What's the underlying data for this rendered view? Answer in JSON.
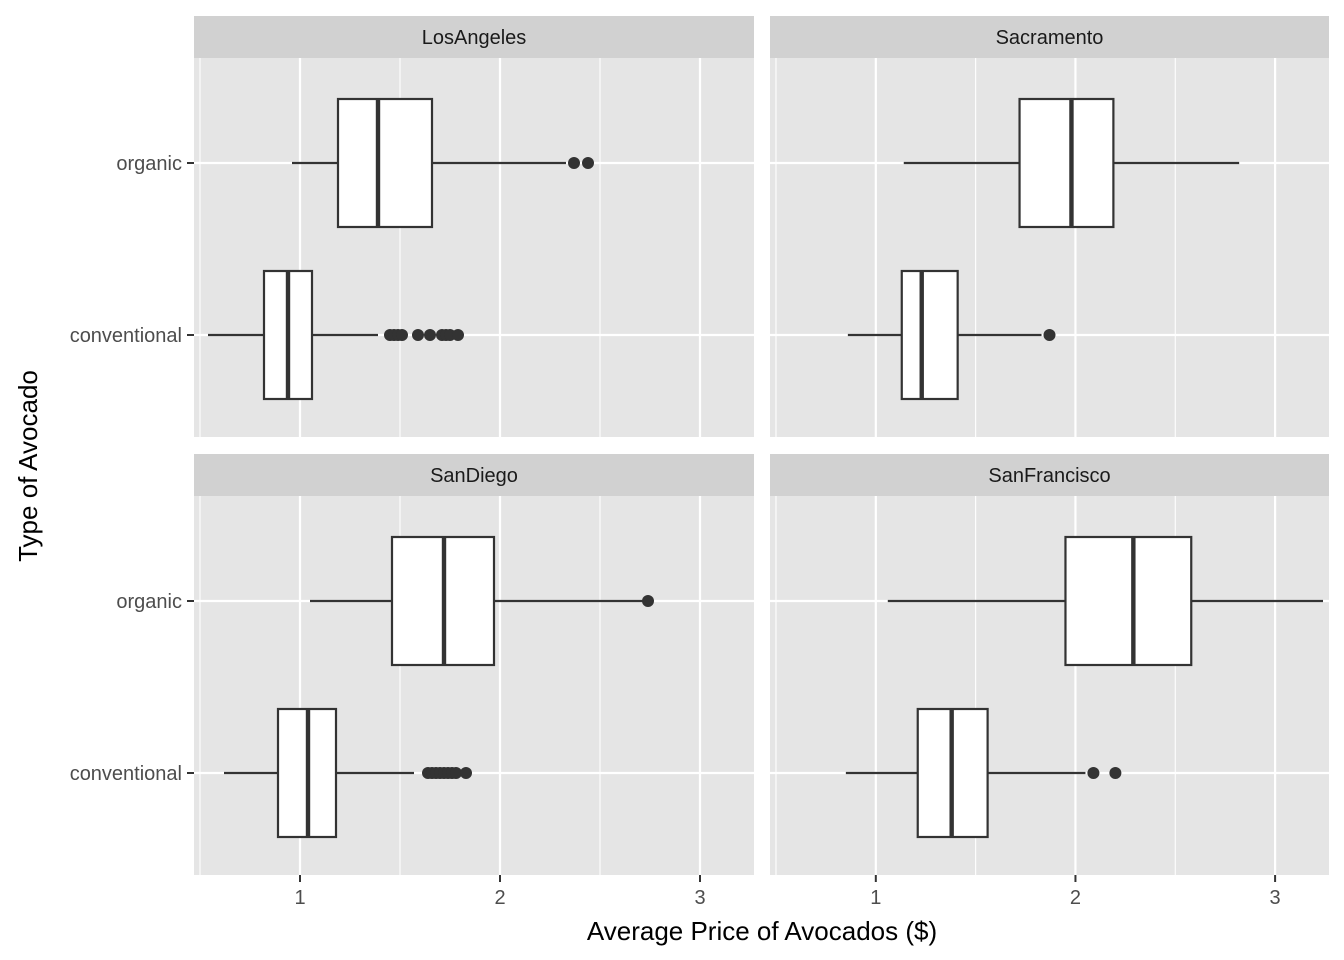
{
  "chart_data": {
    "type": "boxplot",
    "orientation": "horizontal",
    "xlabel": "Average Price of Avocados ($)",
    "ylabel": "Type of Avocado",
    "x_ticks": [
      1,
      2,
      3
    ],
    "xlim": [
      0.47,
      3.27
    ],
    "categories": [
      "conventional",
      "organic"
    ],
    "facets": [
      {
        "name": "LosAngeles",
        "boxes": [
          {
            "category": "organic",
            "whisker_low": 0.96,
            "q1": 1.19,
            "median": 1.39,
            "q3": 1.66,
            "whisker_high": 2.33,
            "outliers": [
              2.37,
              2.44
            ]
          },
          {
            "category": "conventional",
            "whisker_low": 0.54,
            "q1": 0.82,
            "median": 0.94,
            "q3": 1.06,
            "whisker_high": 1.39,
            "outliers": [
              1.45,
              1.47,
              1.49,
              1.51,
              1.59,
              1.65,
              1.71,
              1.73,
              1.75,
              1.79
            ]
          }
        ]
      },
      {
        "name": "Sacramento",
        "boxes": [
          {
            "category": "organic",
            "whisker_low": 1.14,
            "q1": 1.72,
            "median": 1.98,
            "q3": 2.19,
            "whisker_high": 2.82,
            "outliers": []
          },
          {
            "category": "conventional",
            "whisker_low": 0.86,
            "q1": 1.13,
            "median": 1.23,
            "q3": 1.41,
            "whisker_high": 1.83,
            "outliers": [
              1.87
            ]
          }
        ]
      },
      {
        "name": "SanDiego",
        "boxes": [
          {
            "category": "organic",
            "whisker_low": 1.05,
            "q1": 1.46,
            "median": 1.72,
            "q3": 1.97,
            "whisker_high": 2.72,
            "outliers": [
              2.74
            ]
          },
          {
            "category": "conventional",
            "whisker_low": 0.62,
            "q1": 0.89,
            "median": 1.04,
            "q3": 1.18,
            "whisker_high": 1.57,
            "outliers": [
              1.64,
              1.66,
              1.68,
              1.7,
              1.72,
              1.74,
              1.76,
              1.78,
              1.83
            ]
          }
        ]
      },
      {
        "name": "SanFrancisco",
        "boxes": [
          {
            "category": "organic",
            "whisker_low": 1.06,
            "q1": 1.95,
            "median": 2.29,
            "q3": 2.58,
            "whisker_high": 3.24,
            "outliers": []
          },
          {
            "category": "conventional",
            "whisker_low": 0.85,
            "q1": 1.21,
            "median": 1.38,
            "q3": 1.56,
            "whisker_high": 2.05,
            "outliers": [
              2.09,
              2.2
            ]
          }
        ]
      }
    ],
    "grid": true,
    "panel_background": "#e5e5e5",
    "strip_background": "#d1d1d1",
    "gridline_color": "#ffffff",
    "box_fill": "#ffffff",
    "line_color": "#333333"
  }
}
